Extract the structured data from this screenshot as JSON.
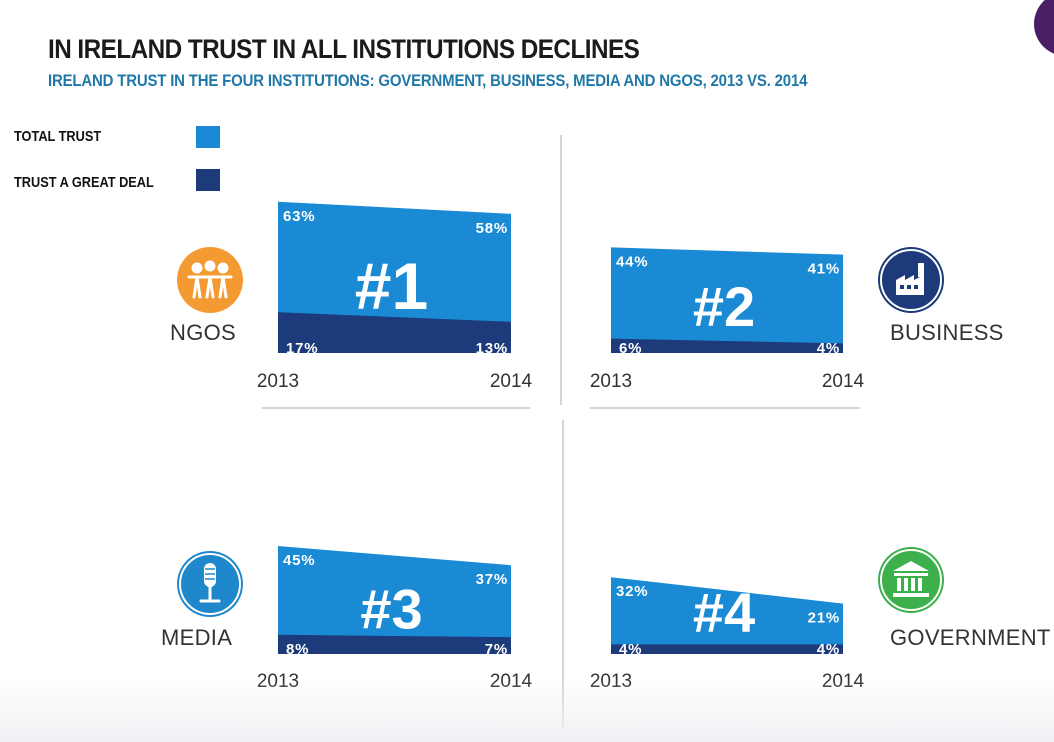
{
  "title": "IN IRELAND TRUST IN ALL INSTITUTIONS DECLINES",
  "subtitle": "IRELAND TRUST IN THE FOUR INSTITUTIONS: GOVERNMENT, BUSINESS, MEDIA AND NGOS, 2013 VS. 2014",
  "legend": {
    "total_trust": "TOTAL TRUST",
    "great_deal": "TRUST A GREAT DEAL"
  },
  "colors": {
    "total_trust": "#1a8ad5",
    "great_deal": "#1d3a7a",
    "ngos": "#f39a32",
    "business": "#1d3a7a",
    "media": "#1f87cc",
    "government": "#3cb04a",
    "divider": "#c8c8c8"
  },
  "chart_data": {
    "type": "area",
    "title": "IN IRELAND TRUST IN ALL INSTITUTIONS DECLINES",
    "subtitle": "IRELAND TRUST IN THE FOUR INSTITUTIONS: GOVERNMENT, BUSINESS, MEDIA AND NGOS, 2013 VS. 2014",
    "x": [
      "2013",
      "2014"
    ],
    "ylim": [
      0,
      100
    ],
    "legend": [
      "TOTAL TRUST",
      "TRUST A GREAT DEAL"
    ],
    "panels": [
      {
        "institution": "NGOS",
        "rank": "#1",
        "icon": "people-icon",
        "total_trust": [
          63,
          58
        ],
        "great_deal": [
          17,
          13
        ],
        "total_labels": [
          "63%",
          "58%"
        ],
        "great_labels": [
          "17%",
          "13%"
        ]
      },
      {
        "institution": "BUSINESS",
        "rank": "#2",
        "icon": "factory-icon",
        "total_trust": [
          44,
          41
        ],
        "great_deal": [
          6,
          4
        ],
        "total_labels": [
          "44%",
          "41%"
        ],
        "great_labels": [
          "6%",
          "4%"
        ]
      },
      {
        "institution": "MEDIA",
        "rank": "#3",
        "icon": "microphone-icon",
        "total_trust": [
          45,
          37
        ],
        "great_deal": [
          8,
          7
        ],
        "total_labels": [
          "45%",
          "37%"
        ],
        "great_labels": [
          "8%",
          "7%"
        ]
      },
      {
        "institution": "GOVERNMENT",
        "rank": "#4",
        "icon": "government-building-icon",
        "total_trust": [
          32,
          21
        ],
        "great_deal": [
          4,
          4
        ],
        "total_labels": [
          "32%",
          "21%"
        ],
        "great_labels": [
          "4%",
          "4%"
        ]
      }
    ]
  }
}
